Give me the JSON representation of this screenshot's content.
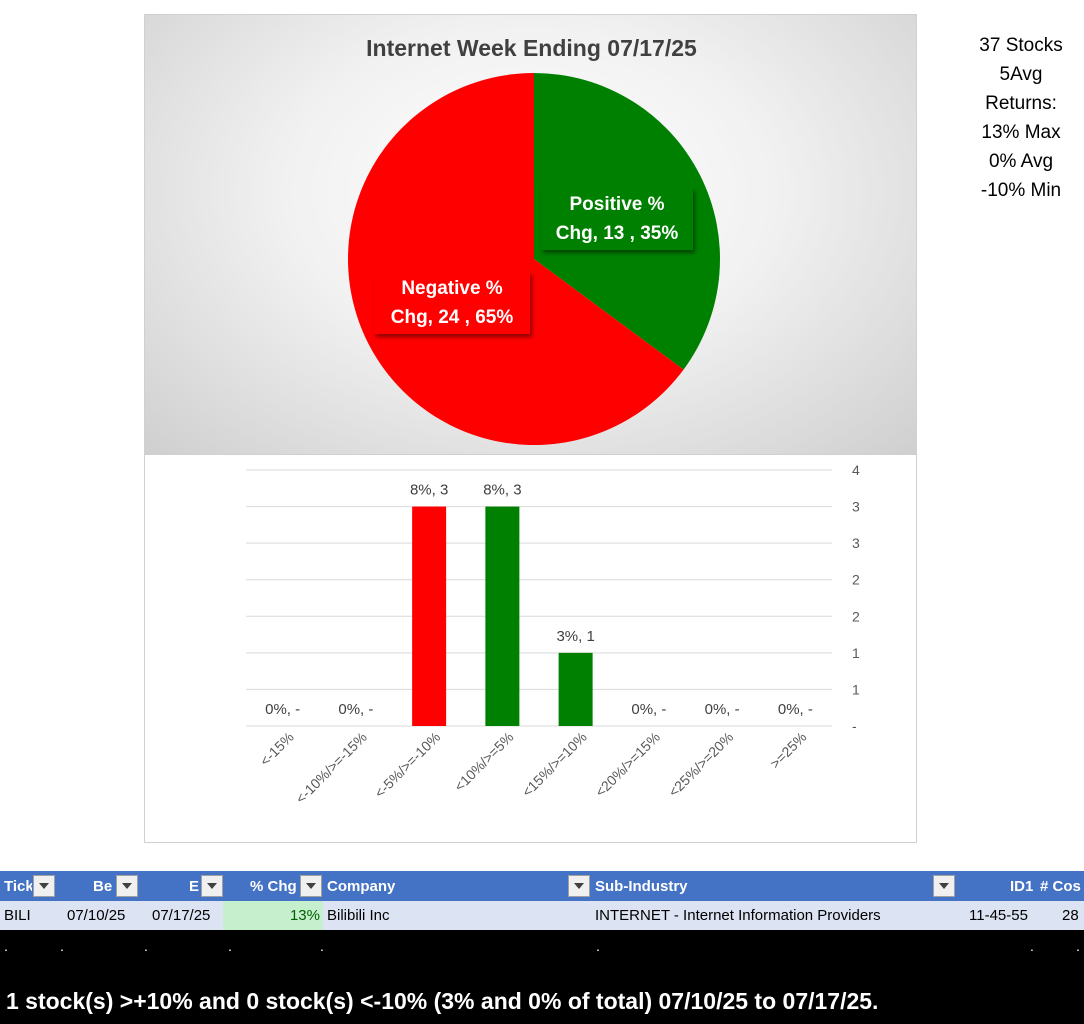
{
  "chart_data": [
    {
      "type": "pie",
      "title": "Internet Week Ending 07/17/25",
      "slices": [
        {
          "line1": "Positive %",
          "line2": "Chg,  13 , 35%",
          "value": 13,
          "percent": 35,
          "color": "#008000"
        },
        {
          "line1": "Negative %",
          "line2": "Chg,  24 , 65%",
          "value": 24,
          "percent": 65,
          "color": "#ff0000"
        }
      ]
    },
    {
      "type": "bar",
      "categories": [
        "<-15%",
        "<-10%/>=-15%",
        "<-5%/>=-10%",
        "<10%/>=5%",
        "<15%/>=10%",
        "<20%/>=15%",
        "<25%/>=20%",
        ">=25%"
      ],
      "values": [
        0,
        0,
        3,
        3,
        1,
        0,
        0,
        0
      ],
      "data_labels": [
        "0%,  -",
        "0%,  -",
        "8%,  3",
        "8%,  3",
        "3%,  1",
        "0%,  -",
        "0%,  -",
        "0%,  -"
      ],
      "colors": [
        "#ff0000",
        "#ff0000",
        "#ff0000",
        "#008000",
        "#008000",
        "#008000",
        "#008000",
        "#008000"
      ],
      "ylim": [
        0,
        3.5
      ],
      "yticks": [
        {
          "value": 3.5,
          "label": "4"
        },
        {
          "value": 3.0,
          "label": "3"
        },
        {
          "value": 2.5,
          "label": "3"
        },
        {
          "value": 2.0,
          "label": "2"
        },
        {
          "value": 1.5,
          "label": "2"
        },
        {
          "value": 1.0,
          "label": "1"
        },
        {
          "value": 0.5,
          "label": "1"
        },
        {
          "value": 0.0,
          "label": "-"
        }
      ],
      "grid": true
    }
  ],
  "stats": {
    "line1": "37 Stocks",
    "line2": "5Avg",
    "line3": "Returns:",
    "line4": "13% Max",
    "line5": "0% Avg",
    "line6": "-10% Min"
  },
  "table": {
    "headers": {
      "ticker": "Tick",
      "begin": "Be",
      "end": "E",
      "pct_chg": "% Chg",
      "company": "Company",
      "sub_industry": "Sub-Industry",
      "id1": "ID1",
      "num_cos": "# Cos"
    },
    "row": {
      "ticker": "BILI",
      "begin": "07/10/25",
      "end": "07/17/25",
      "pct_chg": "13%",
      "company": "Bilibili Inc",
      "sub_industry": "INTERNET - Internet Information Providers",
      "id1": "11-45-55",
      "num_cos": "28"
    },
    "pct_cell_color": "#c6efce"
  },
  "summary": "1 stock(s) >+10% and 0 stock(s) <-10% (3% and 0% of total) 07/10/25 to 07/17/25.",
  "colors": {
    "header_blue": "#4472c4",
    "row_band": "#dce3f2",
    "positive": "#008000",
    "negative": "#ff0000"
  }
}
